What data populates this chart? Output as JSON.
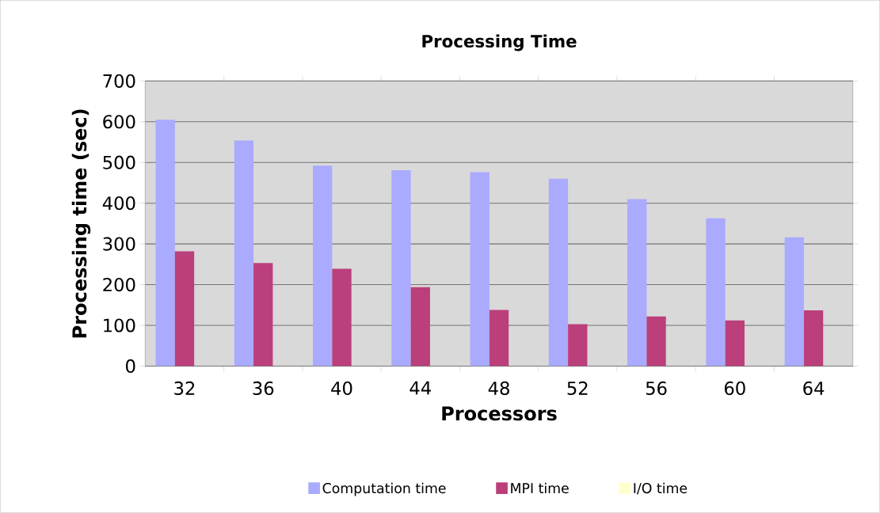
{
  "chart_data": {
    "type": "bar",
    "title": "Processing Time",
    "xlabel": "Processors",
    "ylabel": "Processing time (sec)",
    "categories": [
      "32",
      "36",
      "40",
      "44",
      "48",
      "52",
      "56",
      "60",
      "64"
    ],
    "series": [
      {
        "name": "Computation time",
        "color": "#aaaaff",
        "values": [
          605,
          554,
          492,
          481,
          476,
          460,
          410,
          363,
          316
        ]
      },
      {
        "name": "MPI time",
        "color": "#bb3f7a",
        "values": [
          282,
          253,
          239,
          194,
          138,
          103,
          122,
          112,
          137
        ]
      },
      {
        "name": "I/O time",
        "color": "#ffffcc",
        "values": [
          0,
          0,
          0,
          0,
          0,
          0,
          0,
          0,
          0
        ]
      }
    ],
    "ylim": [
      0,
      700
    ],
    "yticks": [
      0,
      100,
      200,
      300,
      400,
      500,
      600,
      700
    ],
    "grid": "y",
    "legend": "bottom"
  }
}
